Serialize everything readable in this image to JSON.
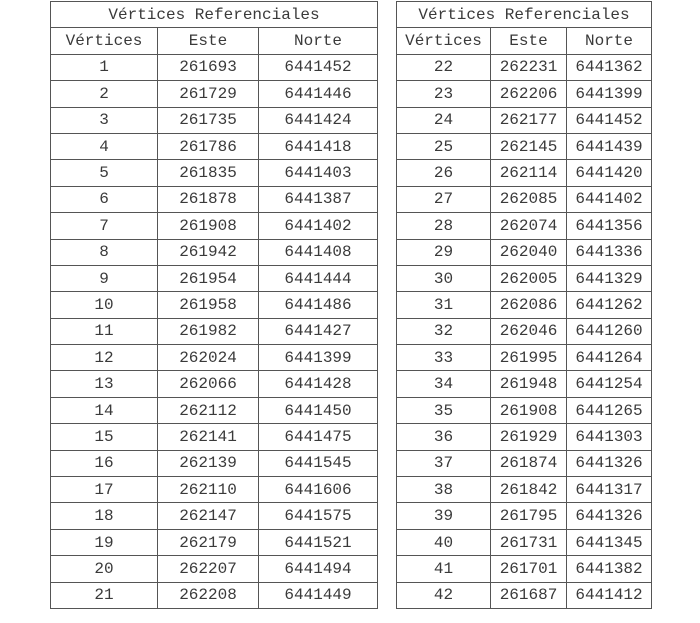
{
  "tables": [
    {
      "title": "Vértices Referenciales",
      "headers": [
        "Vértices",
        "Este",
        "Norte"
      ],
      "rows": [
        [
          "1",
          "261693",
          "6441452"
        ],
        [
          "2",
          "261729",
          "6441446"
        ],
        [
          "3",
          "261735",
          "6441424"
        ],
        [
          "4",
          "261786",
          "6441418"
        ],
        [
          "5",
          "261835",
          "6441403"
        ],
        [
          "6",
          "261878",
          "6441387"
        ],
        [
          "7",
          "261908",
          "6441402"
        ],
        [
          "8",
          "261942",
          "6441408"
        ],
        [
          "9",
          "261954",
          "6441444"
        ],
        [
          "10",
          "261958",
          "6441486"
        ],
        [
          "11",
          "261982",
          "6441427"
        ],
        [
          "12",
          "262024",
          "6441399"
        ],
        [
          "13",
          "262066",
          "6441428"
        ],
        [
          "14",
          "262112",
          "6441450"
        ],
        [
          "15",
          "262141",
          "6441475"
        ],
        [
          "16",
          "262139",
          "6441545"
        ],
        [
          "17",
          "262110",
          "6441606"
        ],
        [
          "18",
          "262147",
          "6441575"
        ],
        [
          "19",
          "262179",
          "6441521"
        ],
        [
          "20",
          "262207",
          "6441494"
        ],
        [
          "21",
          "262208",
          "6441449"
        ]
      ]
    },
    {
      "title": "Vértices Referenciales",
      "headers": [
        "Vértices",
        "Este",
        "Norte"
      ],
      "rows": [
        [
          "22",
          "262231",
          "6441362"
        ],
        [
          "23",
          "262206",
          "6441399"
        ],
        [
          "24",
          "262177",
          "6441452"
        ],
        [
          "25",
          "262145",
          "6441439"
        ],
        [
          "26",
          "262114",
          "6441420"
        ],
        [
          "27",
          "262085",
          "6441402"
        ],
        [
          "28",
          "262074",
          "6441356"
        ],
        [
          "29",
          "262040",
          "6441336"
        ],
        [
          "30",
          "262005",
          "6441329"
        ],
        [
          "31",
          "262086",
          "6441262"
        ],
        [
          "32",
          "262046",
          "6441260"
        ],
        [
          "33",
          "261995",
          "6441264"
        ],
        [
          "34",
          "261948",
          "6441254"
        ],
        [
          "35",
          "261908",
          "6441265"
        ],
        [
          "36",
          "261929",
          "6441303"
        ],
        [
          "37",
          "261874",
          "6441326"
        ],
        [
          "38",
          "261842",
          "6441317"
        ],
        [
          "39",
          "261795",
          "6441326"
        ],
        [
          "40",
          "261731",
          "6441345"
        ],
        [
          "41",
          "261701",
          "6441382"
        ],
        [
          "42",
          "261687",
          "6441412"
        ]
      ]
    }
  ]
}
